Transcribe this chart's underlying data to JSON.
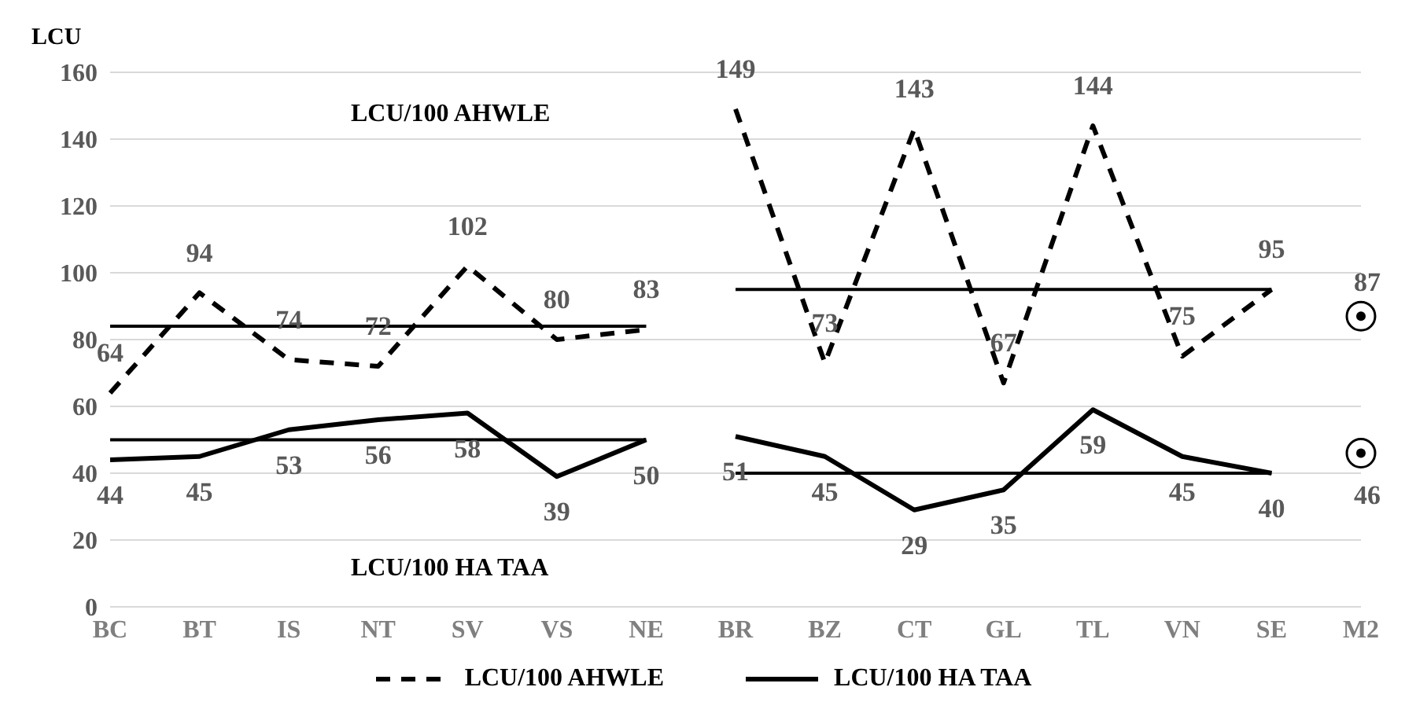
{
  "chart_data": {
    "type": "line",
    "ylabel": "LCU",
    "categories": [
      "BC",
      "BT",
      "IS",
      "NT",
      "SV",
      "VS",
      "NE",
      "BR",
      "BZ",
      "CT",
      "GL",
      "TL",
      "VN",
      "SE",
      "M2"
    ],
    "ylim": [
      0,
      160
    ],
    "yticks": [
      0,
      20,
      40,
      60,
      80,
      100,
      120,
      140,
      160
    ],
    "grid": "y",
    "legend": "bottom",
    "marker": "none",
    "annotations": [
      "LCU/100 AHWLE",
      "LCU/100 HA TAA"
    ],
    "series": [
      {
        "name": "LCU/100 AHWLE",
        "color": "#000000",
        "line_style": "dashed",
        "values": [
          64,
          94,
          74,
          72,
          102,
          80,
          83,
          null,
          null,
          null,
          null,
          null,
          null,
          null,
          null
        ],
        "value_labels": [
          "64",
          "94",
          "74",
          "72",
          "102",
          "80",
          "83",
          null,
          null,
          null,
          null,
          null,
          null,
          null,
          null
        ]
      },
      {
        "color": "#000000",
        "line_style": "dashed",
        "values": [
          null,
          null,
          null,
          null,
          null,
          null,
          null,
          149,
          73,
          143,
          67,
          144,
          75,
          95,
          null
        ],
        "value_labels": [
          null,
          null,
          null,
          null,
          null,
          null,
          null,
          "149",
          "73",
          "143",
          "67",
          "144",
          "75",
          "95",
          null
        ]
      },
      {
        "name": "LCU/100 HA TAA",
        "color": "#000000",
        "line_style": "solid",
        "values": [
          44,
          45,
          53,
          56,
          58,
          39,
          50,
          null,
          null,
          null,
          null,
          null,
          null,
          null,
          null
        ],
        "value_labels": [
          "44",
          "45",
          "53",
          "56",
          "58",
          "39",
          "50",
          null,
          null,
          null,
          null,
          null,
          null,
          null,
          null
        ]
      },
      {
        "color": "#000000",
        "line_style": "solid",
        "values": [
          null,
          null,
          null,
          null,
          null,
          null,
          null,
          51,
          45,
          29,
          35,
          59,
          45,
          40,
          null
        ],
        "value_labels": [
          null,
          null,
          null,
          null,
          null,
          null,
          null,
          "51",
          "45",
          "29",
          "35",
          "59",
          "45",
          "40",
          null
        ]
      },
      {
        "color": "#000000",
        "line_style": "solid",
        "values": [
          84,
          84,
          84,
          84,
          84,
          84,
          84,
          null,
          null,
          null,
          null,
          null,
          null,
          null,
          null
        ]
      },
      {
        "color": "#000000",
        "line_style": "solid",
        "values": [
          50,
          50,
          50,
          50,
          50,
          50,
          50,
          null,
          null,
          null,
          null,
          null,
          null,
          null,
          null
        ]
      },
      {
        "color": "#000000",
        "line_style": "solid",
        "values": [
          null,
          null,
          null,
          null,
          null,
          null,
          null,
          95,
          95,
          95,
          95,
          95,
          95,
          95,
          null
        ]
      },
      {
        "color": "#000000",
        "line_style": "solid",
        "values": [
          null,
          null,
          null,
          null,
          null,
          null,
          null,
          40,
          40,
          40,
          40,
          40,
          40,
          40,
          null
        ]
      },
      {
        "type": "scatter",
        "marker": "circle",
        "color": "#000000",
        "values": [
          null,
          null,
          null,
          null,
          null,
          null,
          null,
          null,
          null,
          null,
          null,
          null,
          null,
          null,
          87
        ],
        "value_labels": [
          null,
          null,
          null,
          null,
          null,
          null,
          null,
          null,
          null,
          null,
          null,
          null,
          null,
          null,
          "87"
        ]
      },
      {
        "type": "scatter",
        "marker": "circle",
        "color": "#000000",
        "values": [
          null,
          null,
          null,
          null,
          null,
          null,
          null,
          null,
          null,
          null,
          null,
          null,
          null,
          null,
          46
        ],
        "value_labels": [
          null,
          null,
          null,
          null,
          null,
          null,
          null,
          null,
          null,
          null,
          null,
          null,
          null,
          null,
          "46"
        ]
      }
    ]
  }
}
